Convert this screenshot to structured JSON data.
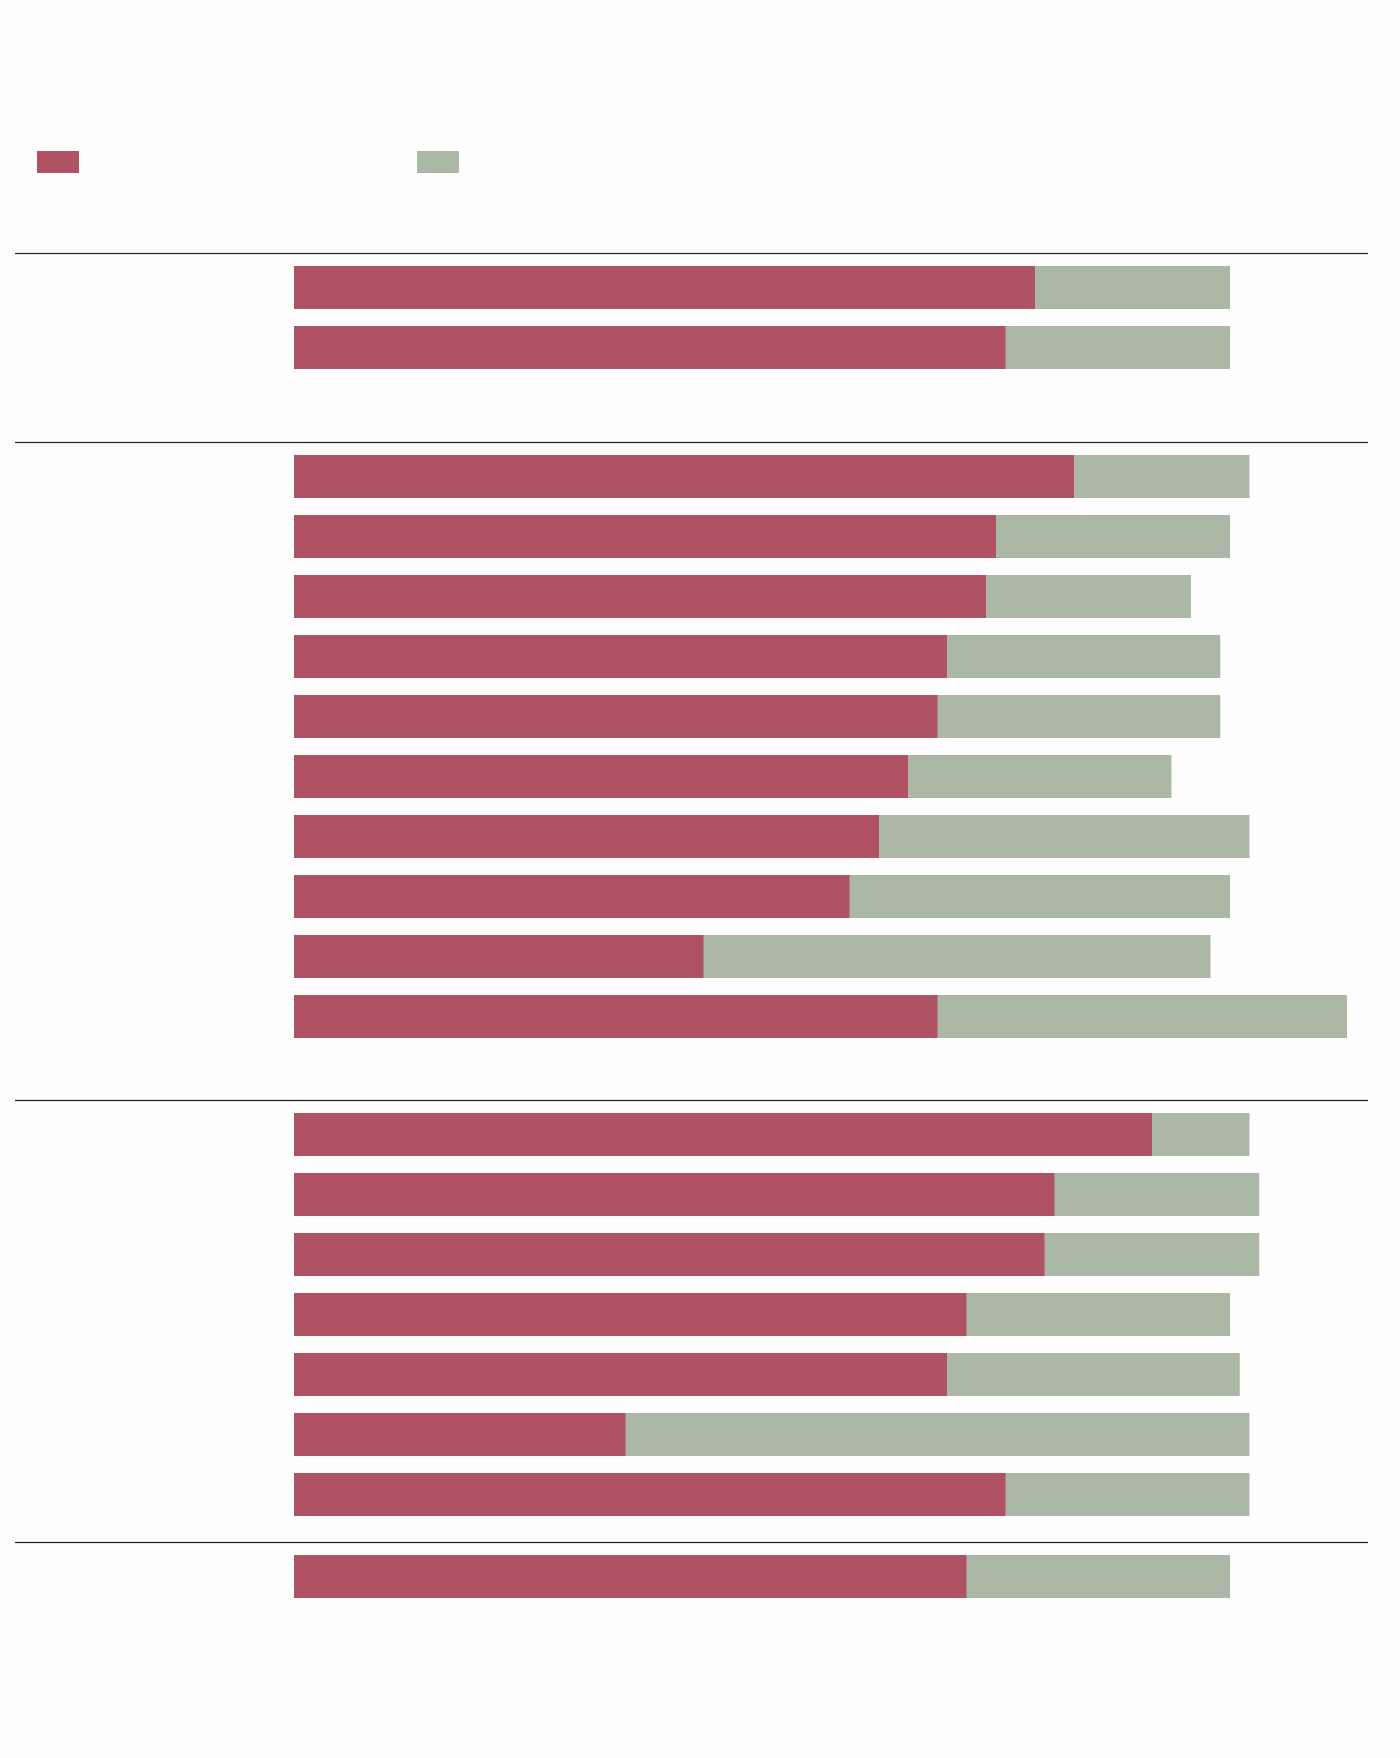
{
  "colors": {
    "series_a": "#ae5264",
    "series_b": "#aab8a5",
    "rule": "#222222",
    "background": "#fefefe"
  },
  "legend": {
    "placement": "top-left",
    "items": [
      {
        "series": 0,
        "label": ""
      },
      {
        "series": 1,
        "label": ""
      }
    ]
  },
  "chart_data": {
    "type": "bar",
    "orientation": "horizontal",
    "stacked": true,
    "title": "",
    "xlabel": "",
    "ylabel": "",
    "xlim": [
      0,
      100
    ],
    "grid": false,
    "groups": [
      {
        "label": "",
        "rows": [
          {
            "label": "",
            "values": [
              76,
              20
            ]
          },
          {
            "label": "",
            "values": [
              73,
              23
            ]
          }
        ]
      },
      {
        "label": "",
        "rows": [
          {
            "label": "",
            "values": [
              80,
              18
            ]
          },
          {
            "label": "",
            "values": [
              72,
              24
            ]
          },
          {
            "label": "",
            "values": [
              71,
              21
            ]
          },
          {
            "label": "",
            "values": [
              67,
              28
            ]
          },
          {
            "label": "",
            "values": [
              66,
              29
            ]
          },
          {
            "label": "",
            "values": [
              63,
              27
            ]
          },
          {
            "label": "",
            "values": [
              60,
              38
            ]
          },
          {
            "label": "",
            "values": [
              57,
              39
            ]
          },
          {
            "label": "",
            "values": [
              42,
              52
            ]
          },
          {
            "label": "",
            "values": [
              66,
              42
            ]
          }
        ]
      },
      {
        "label": "",
        "rows": [
          {
            "label": "",
            "values": [
              88,
              10
            ]
          },
          {
            "label": "",
            "values": [
              78,
              21
            ]
          },
          {
            "label": "",
            "values": [
              77,
              22
            ]
          },
          {
            "label": "",
            "values": [
              69,
              27
            ]
          },
          {
            "label": "",
            "values": [
              67,
              30
            ]
          },
          {
            "label": "",
            "values": [
              34,
              64
            ]
          },
          {
            "label": "",
            "values": [
              73,
              25
            ]
          }
        ]
      },
      {
        "label": "",
        "rows": [
          {
            "label": "",
            "values": [
              69,
              27
            ]
          }
        ]
      }
    ]
  }
}
